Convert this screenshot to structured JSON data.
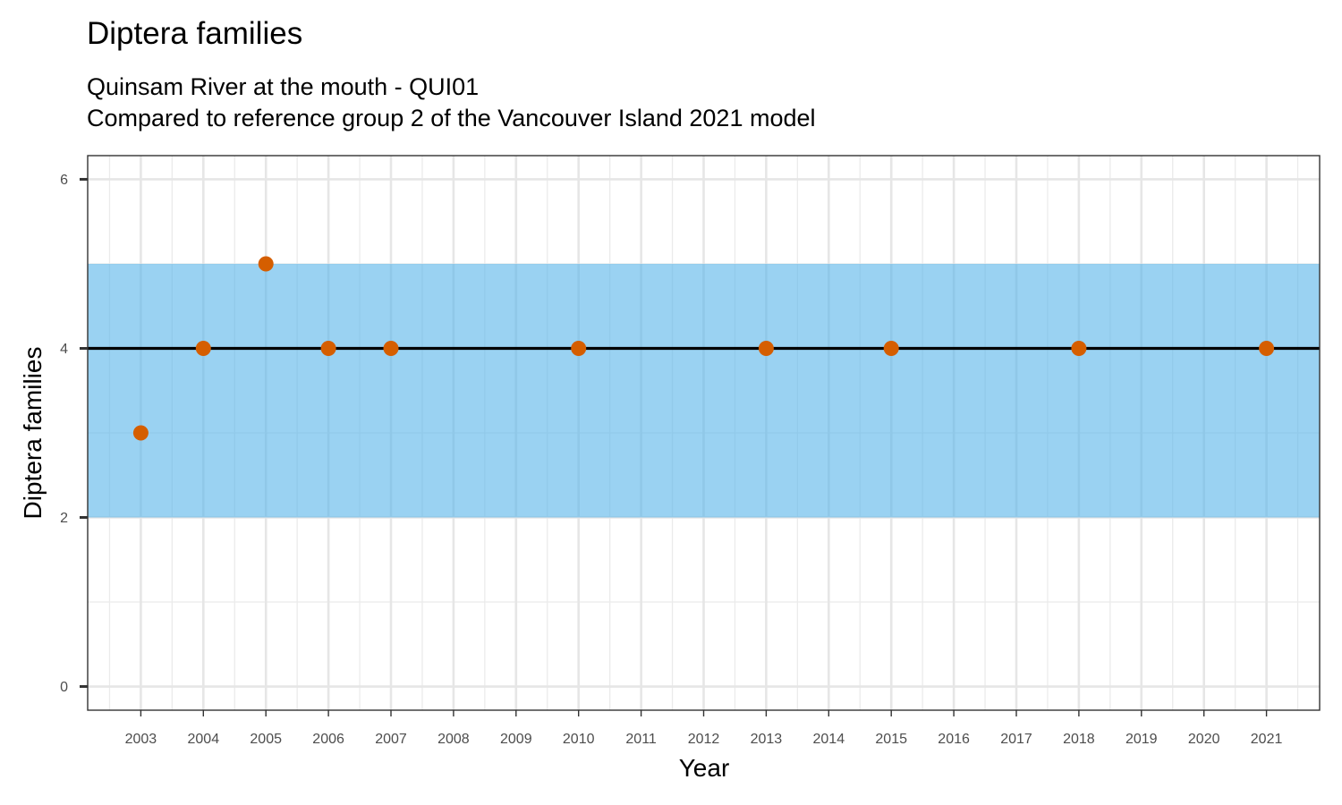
{
  "chart_data": {
    "type": "scatter",
    "title": "Diptera families",
    "subtitle_lines": [
      "Quinsam River at the mouth - QUI01",
      "Compared to reference group 2 of the Vancouver Island 2021 model"
    ],
    "xlabel": "Year",
    "ylabel": "Diptera families",
    "x_ticks": [
      "2003",
      "2004",
      "2005",
      "2006",
      "2007",
      "2008",
      "2009",
      "2010",
      "2011",
      "2012",
      "2013",
      "2014",
      "2015",
      "2016",
      "2017",
      "2018",
      "2019",
      "2020",
      "2021"
    ],
    "y_ticks": [
      "0",
      "2",
      "4",
      "6"
    ],
    "xlim": [
      2002.15,
      2021.85
    ],
    "ylim": [
      -0.28,
      6.28
    ],
    "grid": true,
    "reference_band": {
      "lower": 2,
      "upper": 5,
      "color": "#56B4E9"
    },
    "reference_line": {
      "value": 4,
      "color": "#000000"
    },
    "point_color": "#D55E00",
    "points": [
      {
        "x": 2003,
        "y": 3
      },
      {
        "x": 2004,
        "y": 4
      },
      {
        "x": 2005,
        "y": 5
      },
      {
        "x": 2006,
        "y": 4
      },
      {
        "x": 2007,
        "y": 4
      },
      {
        "x": 2010,
        "y": 4
      },
      {
        "x": 2013,
        "y": 4
      },
      {
        "x": 2015,
        "y": 4
      },
      {
        "x": 2018,
        "y": 4
      },
      {
        "x": 2021,
        "y": 4
      }
    ]
  }
}
